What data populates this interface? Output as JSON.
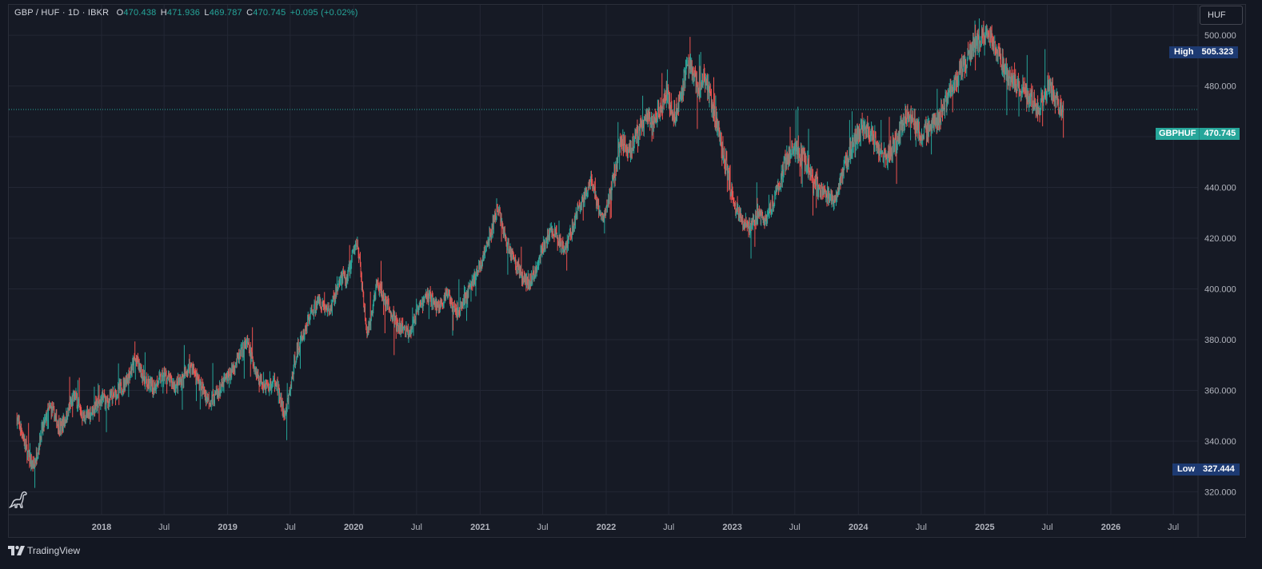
{
  "legend": {
    "symbol": "GBP / HUF · 1D · IBKR",
    "open_label": "O",
    "open": "470.438",
    "high_label": "H",
    "high": "471.936",
    "low_label": "L",
    "low": "469.787",
    "close_label": "C",
    "close": "470.745",
    "change": "+0.095 (+0.02%)"
  },
  "unit_button": "HUF",
  "markers": {
    "high_label": "High",
    "high_value": "505.323",
    "low_label": "Low",
    "low_value": "327.444",
    "last_label": "GBPHUF",
    "last_value": "470.745"
  },
  "footer": {
    "brand": "TradingView"
  },
  "colors": {
    "background": "#161a25",
    "up": "#26a69a",
    "down": "#ef5350",
    "grid": "#232734",
    "axis_text": "#b2b5be",
    "price_line": "#26a69a",
    "marker_bg": "#1d3a72"
  },
  "icons": {
    "logo": "dino-icon",
    "brand_mark": "tradingview-logo-icon"
  },
  "chart_data": {
    "type": "candlestick",
    "title": "GBP / HUF · 1D · IBKR",
    "x_axis": {
      "ticks": [
        {
          "label": "2018",
          "date": "2018-01-01",
          "bold": true
        },
        {
          "label": "Jul",
          "date": "2018-07-01",
          "bold": false
        },
        {
          "label": "2019",
          "date": "2019-01-01",
          "bold": true
        },
        {
          "label": "Jul",
          "date": "2019-07-01",
          "bold": false
        },
        {
          "label": "2020",
          "date": "2020-01-01",
          "bold": true
        },
        {
          "label": "Jul",
          "date": "2020-07-01",
          "bold": false
        },
        {
          "label": "2021",
          "date": "2021-01-01",
          "bold": true
        },
        {
          "label": "Jul",
          "date": "2021-07-01",
          "bold": false
        },
        {
          "label": "2022",
          "date": "2022-01-01",
          "bold": true
        },
        {
          "label": "Jul",
          "date": "2022-07-01",
          "bold": false
        },
        {
          "label": "2023",
          "date": "2023-01-01",
          "bold": true
        },
        {
          "label": "Jul",
          "date": "2023-07-01",
          "bold": false
        },
        {
          "label": "2024",
          "date": "2024-01-01",
          "bold": true
        },
        {
          "label": "Jul",
          "date": "2024-07-01",
          "bold": false
        },
        {
          "label": "2025",
          "date": "2025-01-01",
          "bold": true
        },
        {
          "label": "Jul",
          "date": "2025-07-01",
          "bold": false
        },
        {
          "label": "2026",
          "date": "2026-01-01",
          "bold": true
        },
        {
          "label": "Jul",
          "date": "2026-07-01",
          "bold": false
        }
      ]
    },
    "y_axis": {
      "range": [
        311,
        512
      ],
      "ticks": [
        "320.000",
        "340.000",
        "360.000",
        "380.000",
        "400.000",
        "420.000",
        "440.000",
        "460.000",
        "480.000",
        "500.000"
      ]
    },
    "grid": true,
    "last_price": 470.745,
    "series_close_weekly_approx": {
      "start_date": "2017-05-01",
      "interval_days": 7,
      "values": [
        349,
        346,
        344,
        340,
        336,
        333,
        331,
        330,
        334,
        338,
        343,
        346,
        349,
        352,
        353,
        351,
        349,
        347,
        345,
        347,
        349,
        351,
        354,
        356,
        358,
        355,
        352,
        350,
        349,
        350,
        351,
        352,
        353,
        354,
        355,
        356,
        357,
        355,
        356,
        357,
        358,
        359,
        360,
        361,
        362,
        364,
        366,
        368,
        370,
        372,
        371,
        368,
        366,
        364,
        362,
        362,
        361,
        362,
        363,
        364,
        365,
        366,
        365,
        364,
        363,
        362,
        362,
        363,
        364,
        365,
        367,
        369,
        370,
        368,
        366,
        364,
        362,
        360,
        358,
        357,
        356,
        357,
        358,
        359,
        360,
        362,
        364,
        365,
        366,
        368,
        370,
        372,
        373,
        375,
        377,
        379,
        376,
        373,
        370,
        367,
        365,
        364,
        363,
        362,
        361,
        362,
        363,
        364,
        360,
        356,
        352,
        350,
        355,
        360,
        366,
        372,
        376,
        378,
        381,
        383,
        386,
        389,
        391,
        393,
        394,
        395,
        394,
        393,
        392,
        391,
        393,
        396,
        399,
        402,
        404,
        405,
        403,
        406,
        410,
        414,
        417,
        418,
        408,
        398,
        388,
        382,
        385,
        392,
        398,
        402,
        400,
        398,
        396,
        394,
        392,
        390,
        388,
        386,
        384,
        385,
        384,
        383,
        383,
        385,
        387,
        389,
        391,
        393,
        395,
        397,
        398,
        397,
        395,
        394,
        393,
        394,
        395,
        396,
        398,
        397,
        395,
        393,
        391,
        392,
        394,
        396,
        398,
        400,
        402,
        404,
        406,
        408,
        410,
        413,
        416,
        419,
        422,
        426,
        429,
        431,
        428,
        424,
        420,
        417,
        415,
        413,
        411,
        409,
        407,
        405,
        404,
        403,
        403,
        404,
        406,
        409,
        412,
        415,
        417,
        419,
        421,
        422,
        423,
        421,
        419,
        418,
        417,
        417,
        419,
        422,
        425,
        428,
        431,
        433,
        435,
        437,
        439,
        441,
        440,
        437,
        433,
        430,
        428,
        429,
        432,
        436,
        440,
        445,
        450,
        456,
        459,
        458,
        456,
        454,
        456,
        458,
        460,
        462,
        463,
        465,
        466,
        467,
        465,
        463,
        466,
        469,
        471,
        473,
        475,
        477,
        474,
        470,
        468,
        472,
        476,
        480,
        483,
        486,
        488,
        487,
        484,
        480,
        476,
        480,
        484,
        482,
        478,
        474,
        470,
        466,
        462,
        458,
        454,
        450,
        446,
        441,
        437,
        433,
        431,
        429,
        427,
        426,
        425,
        424,
        425,
        427,
        429,
        430,
        428,
        427,
        429,
        431,
        433,
        435,
        437,
        440,
        443,
        446,
        450,
        453,
        455,
        456,
        455,
        454,
        453,
        452,
        450,
        448,
        446,
        444,
        442,
        441,
        440,
        439,
        438,
        437,
        436,
        435,
        434,
        436,
        440,
        444,
        447,
        450,
        452,
        455,
        457,
        459,
        461,
        463,
        464,
        465,
        464,
        462,
        460,
        458,
        456,
        454,
        452,
        451,
        452,
        454,
        456,
        458,
        460,
        462,
        464,
        466,
        468,
        469,
        468,
        466,
        464,
        462,
        460,
        461,
        462,
        463,
        464,
        465,
        466,
        467,
        469,
        471,
        473,
        475,
        477,
        479,
        481,
        483,
        485,
        487,
        489,
        491,
        493,
        495,
        496,
        497,
        498,
        499,
        500,
        501,
        500,
        498,
        496,
        494,
        492,
        490,
        488,
        486,
        484,
        483,
        482,
        481,
        480,
        479,
        478,
        477,
        476,
        475,
        474,
        473,
        472,
        472,
        474,
        476,
        478,
        480,
        478,
        476,
        474,
        472,
        471
      ]
    }
  }
}
